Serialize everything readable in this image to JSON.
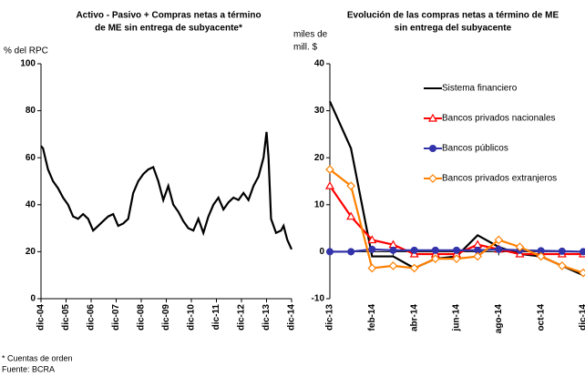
{
  "chart_data": [
    {
      "type": "line",
      "title": [
        "Activo - Pasivo + Compras netas a término",
        "de ME sin entrega de subyacente*"
      ],
      "ylabel": "% del RPC",
      "ylim": [
        0,
        100
      ],
      "yticks": [
        0,
        20,
        40,
        60,
        80,
        100
      ],
      "xlim": [
        2004.92,
        2014.92
      ],
      "xticks": [
        {
          "value": 2004.92,
          "label": "dic-04"
        },
        {
          "value": 2005.92,
          "label": "dic-05"
        },
        {
          "value": 2006.92,
          "label": "dic-06"
        },
        {
          "value": 2007.92,
          "label": "dic-07"
        },
        {
          "value": 2008.92,
          "label": "dic-08"
        },
        {
          "value": 2009.92,
          "label": "dic-09"
        },
        {
          "value": 2010.92,
          "label": "dic-10"
        },
        {
          "value": 2011.92,
          "label": "dic-11"
        },
        {
          "value": 2012.92,
          "label": "dic-12"
        },
        {
          "value": 2013.92,
          "label": "dic-13"
        },
        {
          "value": 2014.92,
          "label": "dic-14"
        }
      ],
      "x": [
        2004.92,
        2005.0,
        2005.2,
        2005.4,
        2005.6,
        2005.8,
        2006.0,
        2006.2,
        2006.4,
        2006.6,
        2006.8,
        2007.0,
        2007.2,
        2007.4,
        2007.6,
        2007.8,
        2008.0,
        2008.2,
        2008.4,
        2008.6,
        2008.8,
        2009.0,
        2009.2,
        2009.4,
        2009.6,
        2009.8,
        2010.0,
        2010.2,
        2010.4,
        2010.6,
        2010.8,
        2011.0,
        2011.2,
        2011.4,
        2011.6,
        2011.8,
        2012.0,
        2012.2,
        2012.4,
        2012.6,
        2012.8,
        2013.0,
        2013.2,
        2013.4,
        2013.6,
        2013.8,
        2013.92,
        2014.0,
        2014.1,
        2014.3,
        2014.5,
        2014.6,
        2014.75,
        2014.92
      ],
      "series": [
        {
          "color": "#000000",
          "marker": "none",
          "values": [
            65,
            64,
            55,
            50,
            47,
            43,
            40,
            35,
            34,
            36,
            34,
            29,
            31,
            33,
            35,
            36,
            31,
            32,
            34,
            45,
            50,
            53,
            55,
            56,
            50,
            42,
            48,
            40,
            37,
            33,
            30,
            29,
            34,
            28,
            35,
            40,
            43,
            38,
            41,
            43,
            42,
            45,
            42,
            48,
            52,
            60,
            71,
            60,
            34,
            28,
            29,
            31,
            25,
            21
          ]
        }
      ]
    },
    {
      "type": "line",
      "title": [
        "Evolución de las compras netas a término de ME",
        "sin entrega del subyacente"
      ],
      "ylabel": [
        "miles de",
        "mill. $"
      ],
      "ylim": [
        -10,
        40
      ],
      "yticks": [
        -10,
        0,
        10,
        20,
        30,
        40
      ],
      "categories": [
        "dic-13",
        null,
        "feb-14",
        null,
        "abr-14",
        null,
        "jun-14",
        null,
        "ago-14",
        null,
        "oct-14",
        null,
        "dic-14"
      ],
      "series": [
        {
          "name": "Sistema financiero",
          "color": "#000000",
          "marker": "none",
          "values": [
            32,
            22,
            -1,
            -1,
            -3.5,
            -1.5,
            -1,
            3.5,
            1,
            -0.5,
            -1,
            -3,
            -5
          ]
        },
        {
          "name": "Bancos privados nacionales",
          "color": "#ff0000",
          "marker": "triangle",
          "values": [
            14,
            7.5,
            2.5,
            1.5,
            -0.5,
            -0.5,
            -0.5,
            1.5,
            0.5,
            -0.5,
            -0.5,
            -0.5,
            -0.5
          ]
        },
        {
          "name": "Bancos públicos",
          "color": "#3333aa",
          "marker": "circle",
          "values": [
            0,
            0,
            0.5,
            0.3,
            0.3,
            0.3,
            0.3,
            0.3,
            0.5,
            0.3,
            0.2,
            0.1,
            0
          ]
        },
        {
          "name": "Bancos privados extranjeros",
          "color": "#ff8000",
          "marker": "diamond",
          "values": [
            17.5,
            14,
            -3.5,
            -3,
            -3.5,
            -1.5,
            -1.5,
            -1,
            2.5,
            1,
            -1,
            -3,
            -4.5
          ]
        }
      ]
    }
  ],
  "footnotes": [
    "* Cuentas de orden",
    "Fuente: BCRA"
  ]
}
